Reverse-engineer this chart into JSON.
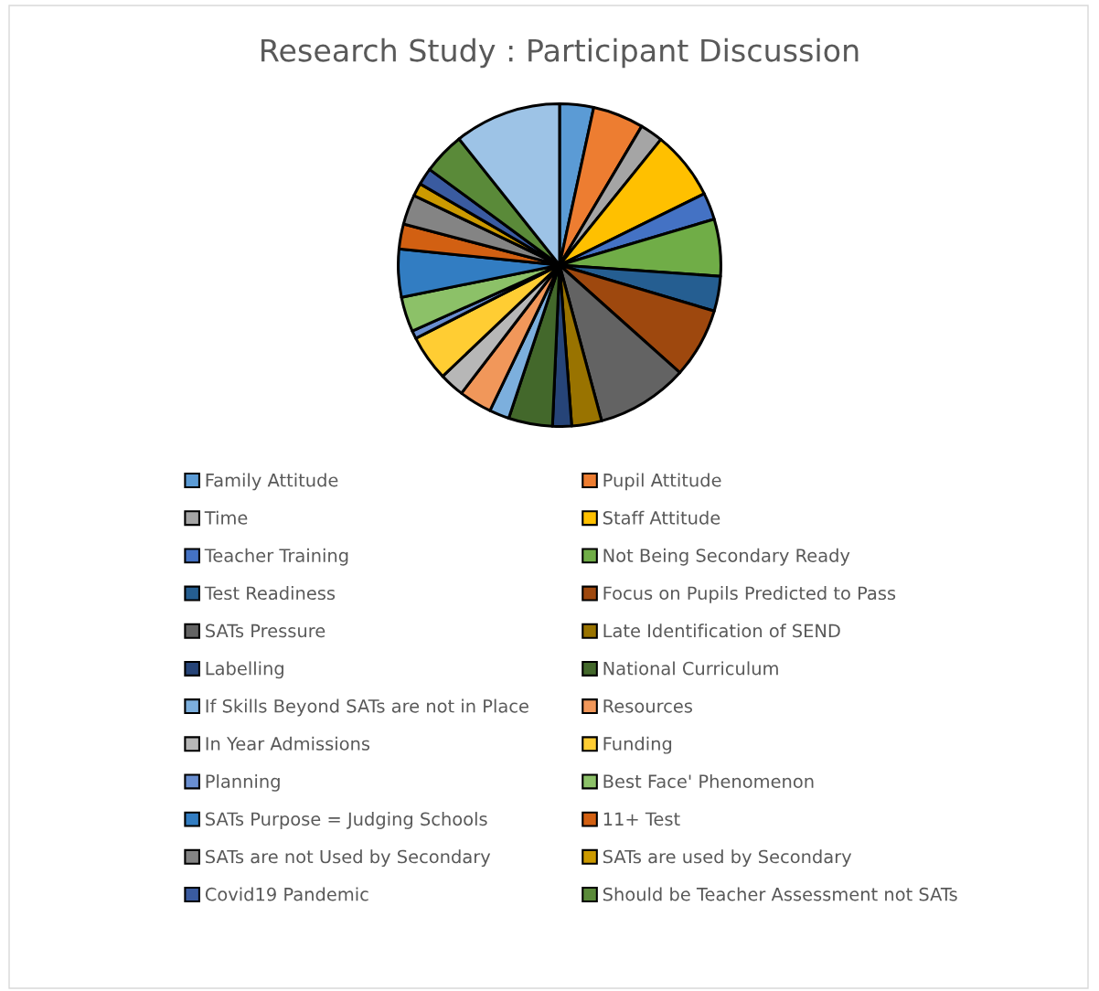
{
  "chart_data": {
    "type": "pie",
    "title": "Research Study : Participant Discussion",
    "legend": "bottom",
    "categories": [
      "Family Attitude",
      "Pupil Attitude",
      "Time",
      "Staff Attitude",
      "Teacher Training",
      "Not Being Secondary Ready",
      "Test Readiness",
      "Focus on Pupils Predicted to Pass",
      "SATs Pressure",
      "Late Identification of SEND",
      "Labelling",
      "National Curriculum",
      "If Skills Beyond SATs are not in Place",
      "Resources",
      "In Year Admissions",
      "Funding",
      "Planning",
      "Best Face' Phenomenon",
      "SATs Purpose = Judging Schools",
      "11+ Test",
      "SATs are not Used by Secondary",
      "SATs are used by Secondary",
      "Covid19 Pandemic",
      "Should be Teacher Assessment not SATs",
      null
    ],
    "values": [
      3.4,
      5.1,
      2.3,
      6.9,
      2.7,
      5.7,
      3.5,
      7.0,
      9.2,
      3.0,
      1.9,
      4.4,
      2.0,
      3.3,
      2.5,
      4.6,
      0.8,
      3.5,
      4.8,
      2.5,
      3.0,
      1.3,
      1.7,
      4.2,
      10.7
    ],
    "colors": [
      "#5b9bd5",
      "#ed7d31",
      "#a5a5a5",
      "#ffc000",
      "#4472c4",
      "#70ad47",
      "#255e91",
      "#9e480e",
      "#636363",
      "#997300",
      "#264478",
      "#43682b",
      "#7cafdd",
      "#f1975a",
      "#b7b7b7",
      "#ffcd33",
      "#698ed0",
      "#8cc168",
      "#327dc2",
      "#d26012",
      "#848484",
      "#cc9a00",
      "#3a5ba0",
      "#5a8a39",
      "#9dc3e6"
    ]
  }
}
